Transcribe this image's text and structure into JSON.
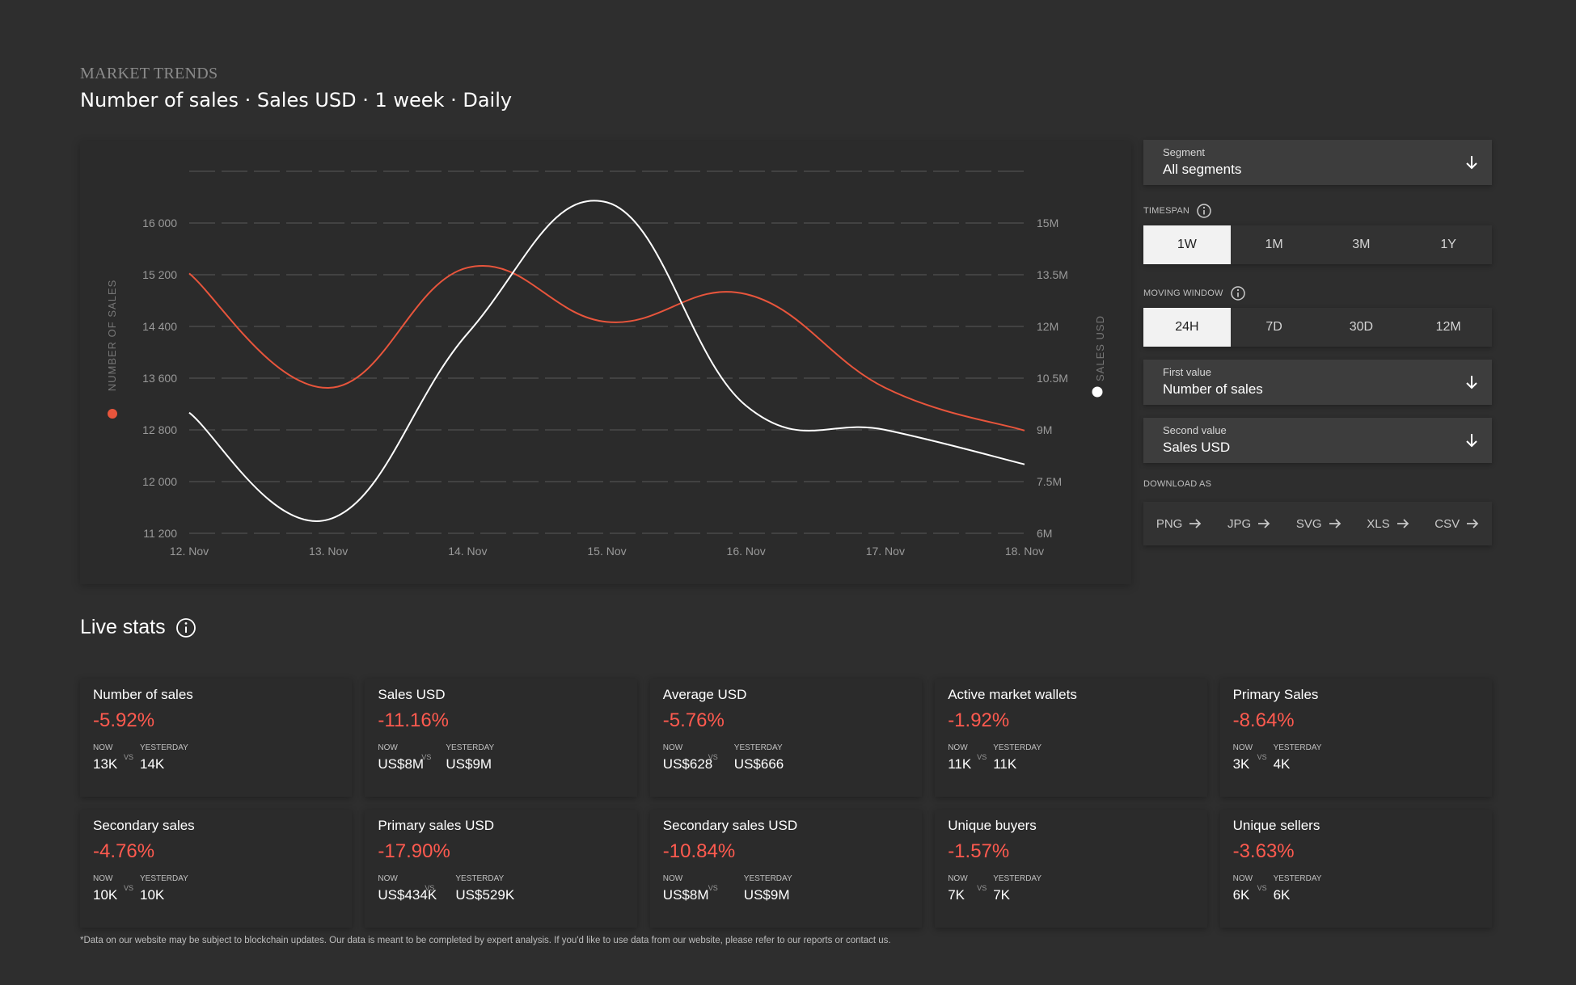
{
  "header": {
    "section_label": "MARKET TRENDS",
    "title": "Number of sales · Sales USD · 1 week · Daily"
  },
  "chart_data": {
    "type": "line",
    "x": [
      "12. Nov",
      "13. Nov",
      "14. Nov",
      "15. Nov",
      "16. Nov",
      "17. Nov",
      "18. Nov"
    ],
    "left_axis": {
      "label": "NUMBER OF SALES",
      "ticks": [
        "16 000",
        "15 200",
        "14 400",
        "13 600",
        "12 800",
        "12 000",
        "11 200"
      ],
      "range": [
        11200,
        16800
      ]
    },
    "right_axis": {
      "label": "SALES USD",
      "ticks": [
        "15M",
        "13.5M",
        "12M",
        "10.5M",
        "9M",
        "7.5M",
        "6M"
      ],
      "range": [
        6000000,
        16500000
      ]
    },
    "series": [
      {
        "name": "NUMBER OF SALES",
        "axis": "left",
        "color": "#e8553c",
        "values": [
          15220,
          13450,
          15310,
          14470,
          14900,
          13450,
          12790
        ]
      },
      {
        "name": "SALES USD",
        "axis": "right",
        "color": "#ffffff",
        "values": [
          9500000,
          6400000,
          11800000,
          15600000,
          9700000,
          9000000,
          8000000
        ]
      }
    ],
    "grid": true
  },
  "controls": {
    "segment": {
      "label": "Segment",
      "value": "All segments"
    },
    "timespan": {
      "label": "TIMESPAN",
      "options": [
        "1W",
        "1M",
        "3M",
        "1Y"
      ],
      "selected": "1W"
    },
    "moving_window": {
      "label": "MOVING WINDOW",
      "options": [
        "24H",
        "7D",
        "30D",
        "12M"
      ],
      "selected": "24H"
    },
    "first_value": {
      "label": "First value",
      "value": "Number of sales"
    },
    "second_value": {
      "label": "Second value",
      "value": "Sales USD"
    },
    "download": {
      "label": "DOWNLOAD AS",
      "formats": [
        "PNG",
        "JPG",
        "SVG",
        "XLS",
        "CSV"
      ]
    }
  },
  "live_stats": {
    "title": "Live stats",
    "now_label": "NOW",
    "vs_label": "VS",
    "yesterday_label": "YESTERDAY",
    "cards": [
      {
        "title": "Number of sales",
        "change": "-5.92%",
        "now": "13K",
        "yesterday": "14K"
      },
      {
        "title": "Sales USD",
        "change": "-11.16%",
        "now": "US$8M",
        "yesterday": "US$9M"
      },
      {
        "title": "Average USD",
        "change": "-5.76%",
        "now": "US$628",
        "yesterday": "US$666"
      },
      {
        "title": "Active market wallets",
        "change": "-1.92%",
        "now": "11K",
        "yesterday": "11K"
      },
      {
        "title": "Primary Sales",
        "change": "-8.64%",
        "now": "3K",
        "yesterday": "4K"
      },
      {
        "title": "Secondary sales",
        "change": "-4.76%",
        "now": "10K",
        "yesterday": "10K"
      },
      {
        "title": "Primary sales USD",
        "change": "-17.90%",
        "now": "US$434K",
        "yesterday": "US$529K"
      },
      {
        "title": "Secondary sales USD",
        "change": "-10.84%",
        "now": "US$8M",
        "yesterday": "US$9M"
      },
      {
        "title": "Unique buyers",
        "change": "-1.57%",
        "now": "7K",
        "yesterday": "7K"
      },
      {
        "title": "Unique sellers",
        "change": "-3.63%",
        "now": "6K",
        "yesterday": "6K"
      }
    ]
  },
  "footnote": "*Data on our website may be subject to blockchain updates. Our data is meant to be completed by expert analysis. If you'd like to use data from our website, please refer to our reports or contact us."
}
